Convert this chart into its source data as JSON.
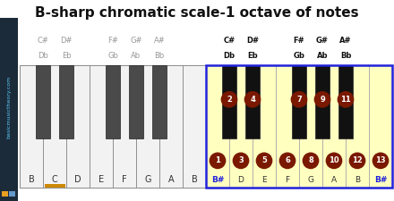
{
  "title": "B-sharp chromatic scale-1 octave of notes",
  "title_fontsize": 11,
  "background_color": "#ffffff",
  "sidebar_color": "#1c2b3a",
  "sidebar_text": "basicmusictheory.com",
  "sidebar_text_color": "#5bc8f5",
  "sidebar_dot1_color": "#e8a020",
  "sidebar_dot2_color": "#6699cc",
  "white_key_color": "#f2f2f2",
  "white_key_active_color": "#ffffc0",
  "black_key_color": "#4a4a4a",
  "black_key_active_color": "#111111",
  "active_border_color": "#2222dd",
  "note_circle_color": "#7a1800",
  "note_circle_text_color": "#ffffff",
  "note_label_active_color": "#2222dd",
  "note_label_inactive_color": "#333333",
  "c_highlight_color": "#cc8800",
  "left_white_notes": [
    "B",
    "C",
    "D",
    "E",
    "F",
    "G",
    "A",
    "B"
  ],
  "left_black_positions": [
    1,
    2,
    4,
    5,
    6
  ],
  "left_black_labels_top": [
    "C#",
    "D#",
    "F#",
    "G#",
    "A#"
  ],
  "left_black_labels_bot": [
    "Db",
    "Eb",
    "Gb",
    "Ab",
    "Bb"
  ],
  "right_white_notes": [
    "B#",
    "D",
    "E",
    "F",
    "G",
    "A",
    "B",
    "B#"
  ],
  "right_white_numbers": [
    1,
    3,
    5,
    6,
    8,
    10,
    12,
    13
  ],
  "right_black_positions": [
    1,
    2,
    4,
    5,
    6
  ],
  "right_black_numbers": [
    2,
    4,
    7,
    9,
    11
  ],
  "right_black_labels_top": [
    "C#",
    "D#",
    "F#",
    "G#",
    "A#"
  ],
  "right_black_labels_bot": [
    "Db",
    "Eb",
    "Gb",
    "Ab",
    "Bb"
  ]
}
